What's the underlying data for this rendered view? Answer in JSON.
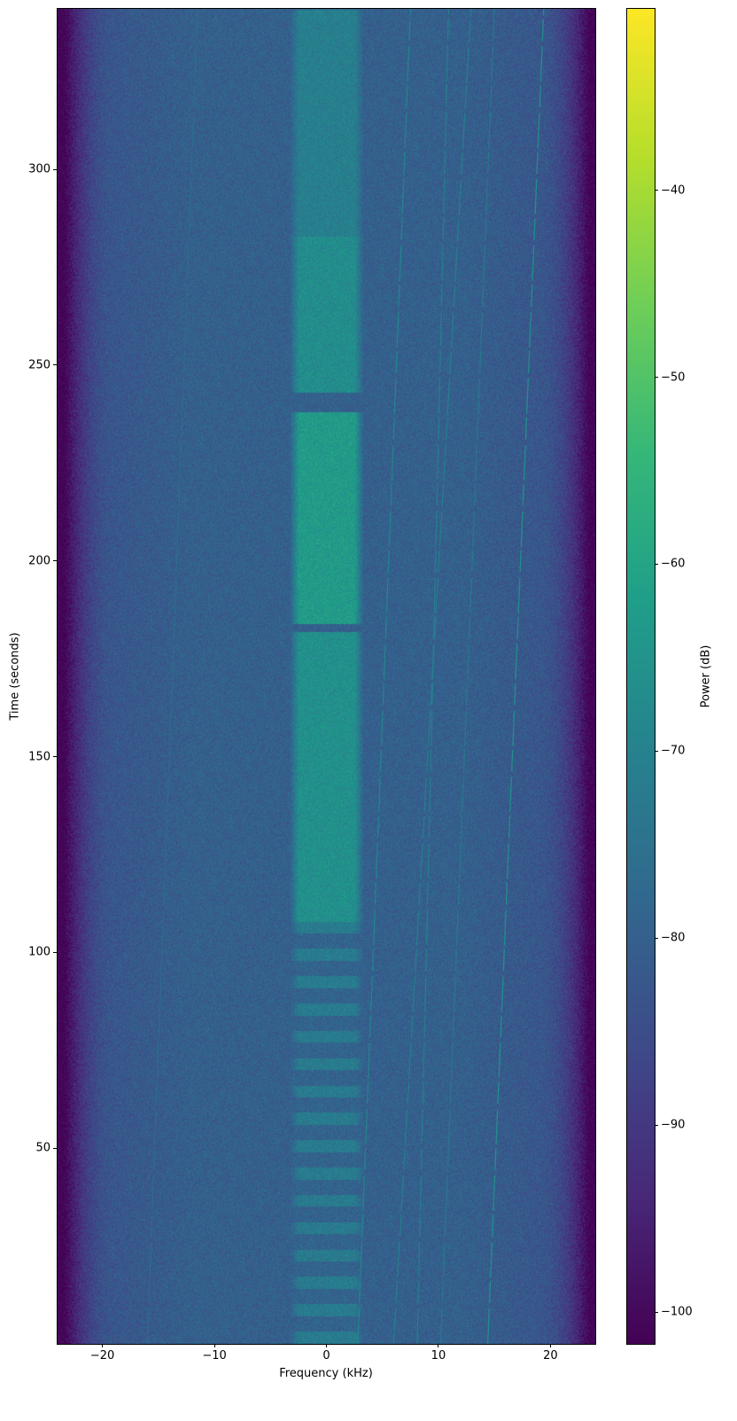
{
  "chart_data": {
    "type": "heatmap",
    "subtype": "spectrogram",
    "title": "",
    "xlabel": "Frequency (kHz)",
    "ylabel": "Time (seconds)",
    "xlim": [
      -24,
      24
    ],
    "ylim": [
      0,
      341
    ],
    "xticks": [
      -20,
      -10,
      0,
      10,
      20
    ],
    "xtick_labels": [
      "−20",
      "−10",
      "0",
      "10",
      "20"
    ],
    "yticks": [
      50,
      100,
      150,
      200,
      250,
      300
    ],
    "ytick_labels": [
      "50",
      "100",
      "150",
      "200",
      "250",
      "300"
    ],
    "colorbar": {
      "label": "Power (dB)",
      "colormap": "viridis",
      "range": [
        -101.7,
        -30.3
      ],
      "ticks": [
        -40,
        -50,
        -60,
        -70,
        -80,
        -90,
        -100
      ],
      "tick_labels": [
        "−40",
        "−50",
        "−60",
        "−70",
        "−80",
        "−90",
        "−100"
      ]
    },
    "noise_floor_db": -80,
    "edge_rolloff_db": -102,
    "passband_khz": [
      -22,
      22
    ],
    "center_band": {
      "freq_khz": [
        -3,
        3
      ],
      "segments": [
        {
          "t": [
            0,
            108
          ],
          "power_db": -75,
          "pattern": "striped"
        },
        {
          "t": [
            108,
            182
          ],
          "power_db": -66
        },
        {
          "t": [
            184,
            238
          ],
          "power_db": -63
        },
        {
          "t": [
            243,
            283
          ],
          "power_db": -67
        },
        {
          "t": [
            283,
            341
          ],
          "power_db": -71
        }
      ]
    },
    "tone_lines": [
      {
        "freq_start_khz": 2.8,
        "freq_end_khz": 7.5,
        "power_db": -68
      },
      {
        "freq_start_khz": 6.0,
        "freq_end_khz": 12.9,
        "power_db": -70
      },
      {
        "freq_start_khz": 8.1,
        "freq_end_khz": 10.9,
        "power_db": -70
      },
      {
        "freq_start_khz": 10.2,
        "freq_end_khz": 15.0,
        "power_db": -72
      },
      {
        "freq_start_khz": 14.4,
        "freq_end_khz": 19.4,
        "power_db": -64
      },
      {
        "freq_start_khz": -16.0,
        "freq_end_khz": -11.5,
        "power_db": -76
      }
    ]
  }
}
